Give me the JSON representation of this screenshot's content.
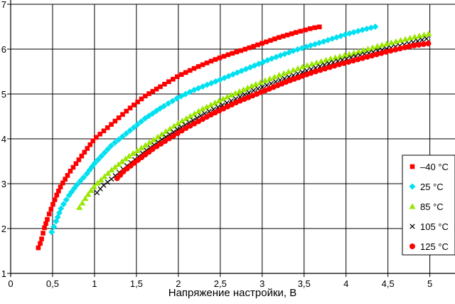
{
  "chart_data": {
    "type": "scatter",
    "title": "",
    "xlabel": "Напряжение настройки, В",
    "ylabel": "",
    "xlim": [
      0,
      5.3
    ],
    "ylim": [
      1,
      7
    ],
    "grid": true,
    "legend_position": "right",
    "x_ticks": [
      {
        "value": 0,
        "label": "0"
      },
      {
        "value": 0.5,
        "label": "0,5"
      },
      {
        "value": 1,
        "label": "1"
      },
      {
        "value": 1.5,
        "label": "1,5"
      },
      {
        "value": 2,
        "label": "2"
      },
      {
        "value": 2.5,
        "label": "2,5"
      },
      {
        "value": 3,
        "label": "3"
      },
      {
        "value": 3.5,
        "label": "3,5"
      },
      {
        "value": 4,
        "label": "4"
      },
      {
        "value": 4.5,
        "label": "4,5"
      },
      {
        "value": 5,
        "label": "5"
      }
    ],
    "y_ticks": [
      {
        "value": 1,
        "label": "1"
      },
      {
        "value": 2,
        "label": "2"
      },
      {
        "value": 3,
        "label": "3"
      },
      {
        "value": 4,
        "label": "4"
      },
      {
        "value": 5,
        "label": "5"
      },
      {
        "value": 6,
        "label": "6"
      },
      {
        "value": 7,
        "label": "7"
      }
    ],
    "series": [
      {
        "name": "–40 °C",
        "color": "#ff0000",
        "marker": "square",
        "x_range": [
          0.33,
          3.7
        ],
        "points": [
          [
            0.33,
            1.57
          ],
          [
            0.36,
            1.7
          ],
          [
            0.4,
            2.0
          ],
          [
            0.45,
            2.28
          ],
          [
            0.5,
            2.52
          ],
          [
            0.55,
            2.75
          ],
          [
            0.6,
            2.95
          ],
          [
            0.7,
            3.25
          ],
          [
            0.8,
            3.5
          ],
          [
            0.9,
            3.75
          ],
          [
            1.0,
            4.0
          ],
          [
            1.2,
            4.32
          ],
          [
            1.4,
            4.65
          ],
          [
            1.6,
            4.95
          ],
          [
            1.8,
            5.18
          ],
          [
            2.0,
            5.4
          ],
          [
            2.2,
            5.58
          ],
          [
            2.4,
            5.74
          ],
          [
            2.6,
            5.88
          ],
          [
            2.8,
            6.0
          ],
          [
            3.0,
            6.13
          ],
          [
            3.2,
            6.26
          ],
          [
            3.4,
            6.37
          ],
          [
            3.6,
            6.47
          ],
          [
            3.7,
            6.5
          ]
        ]
      },
      {
        "name": "25 °C",
        "color": "#00e0f0",
        "marker": "diamond",
        "x_range": [
          0.49,
          4.35
        ],
        "points": [
          [
            0.49,
            1.92
          ],
          [
            0.55,
            2.2
          ],
          [
            0.6,
            2.45
          ],
          [
            0.7,
            2.75
          ],
          [
            0.8,
            3.0
          ],
          [
            0.9,
            3.2
          ],
          [
            1.0,
            3.45
          ],
          [
            1.2,
            3.85
          ],
          [
            1.4,
            4.15
          ],
          [
            1.6,
            4.45
          ],
          [
            1.8,
            4.7
          ],
          [
            2.0,
            4.92
          ],
          [
            2.2,
            5.1
          ],
          [
            2.5,
            5.32
          ],
          [
            2.8,
            5.55
          ],
          [
            3.1,
            5.78
          ],
          [
            3.4,
            5.98
          ],
          [
            3.7,
            6.15
          ],
          [
            4.0,
            6.33
          ],
          [
            4.2,
            6.43
          ],
          [
            4.35,
            6.5
          ]
        ]
      },
      {
        "name": "85 °C",
        "color": "#99e600",
        "marker": "triangle",
        "x_range": [
          0.82,
          5.0
        ],
        "points": [
          [
            0.82,
            2.47
          ],
          [
            0.9,
            2.7
          ],
          [
            1.0,
            2.95
          ],
          [
            1.2,
            3.3
          ],
          [
            1.4,
            3.6
          ],
          [
            1.6,
            3.85
          ],
          [
            1.8,
            4.1
          ],
          [
            2.0,
            4.35
          ],
          [
            2.3,
            4.68
          ],
          [
            2.6,
            4.95
          ],
          [
            2.9,
            5.2
          ],
          [
            3.2,
            5.42
          ],
          [
            3.5,
            5.62
          ],
          [
            3.8,
            5.78
          ],
          [
            4.1,
            5.92
          ],
          [
            4.4,
            6.08
          ],
          [
            4.7,
            6.22
          ],
          [
            5.0,
            6.35
          ]
        ]
      },
      {
        "name": "105 °C",
        "color": "#000000",
        "marker": "x",
        "x_range": [
          1.03,
          5.0
        ],
        "points": [
          [
            1.03,
            2.8
          ],
          [
            1.1,
            2.95
          ],
          [
            1.2,
            3.1
          ],
          [
            1.4,
            3.42
          ],
          [
            1.6,
            3.72
          ],
          [
            1.8,
            3.98
          ],
          [
            2.0,
            4.22
          ],
          [
            2.3,
            4.55
          ],
          [
            2.6,
            4.82
          ],
          [
            2.9,
            5.08
          ],
          [
            3.2,
            5.3
          ],
          [
            3.5,
            5.5
          ],
          [
            3.8,
            5.68
          ],
          [
            4.1,
            5.83
          ],
          [
            4.4,
            5.97
          ],
          [
            4.7,
            6.1
          ],
          [
            5.0,
            6.25
          ]
        ]
      },
      {
        "name": "125 °C",
        "color": "#ff0000",
        "marker": "circle",
        "x_range": [
          1.27,
          5.0
        ],
        "points": [
          [
            1.27,
            3.12
          ],
          [
            1.35,
            3.28
          ],
          [
            1.5,
            3.5
          ],
          [
            1.7,
            3.78
          ],
          [
            1.9,
            4.02
          ],
          [
            2.1,
            4.25
          ],
          [
            2.4,
            4.55
          ],
          [
            2.7,
            4.82
          ],
          [
            3.0,
            5.05
          ],
          [
            3.3,
            5.28
          ],
          [
            3.6,
            5.48
          ],
          [
            3.9,
            5.65
          ],
          [
            4.2,
            5.8
          ],
          [
            4.5,
            5.95
          ],
          [
            4.8,
            6.08
          ],
          [
            5.0,
            6.13
          ]
        ]
      }
    ]
  }
}
